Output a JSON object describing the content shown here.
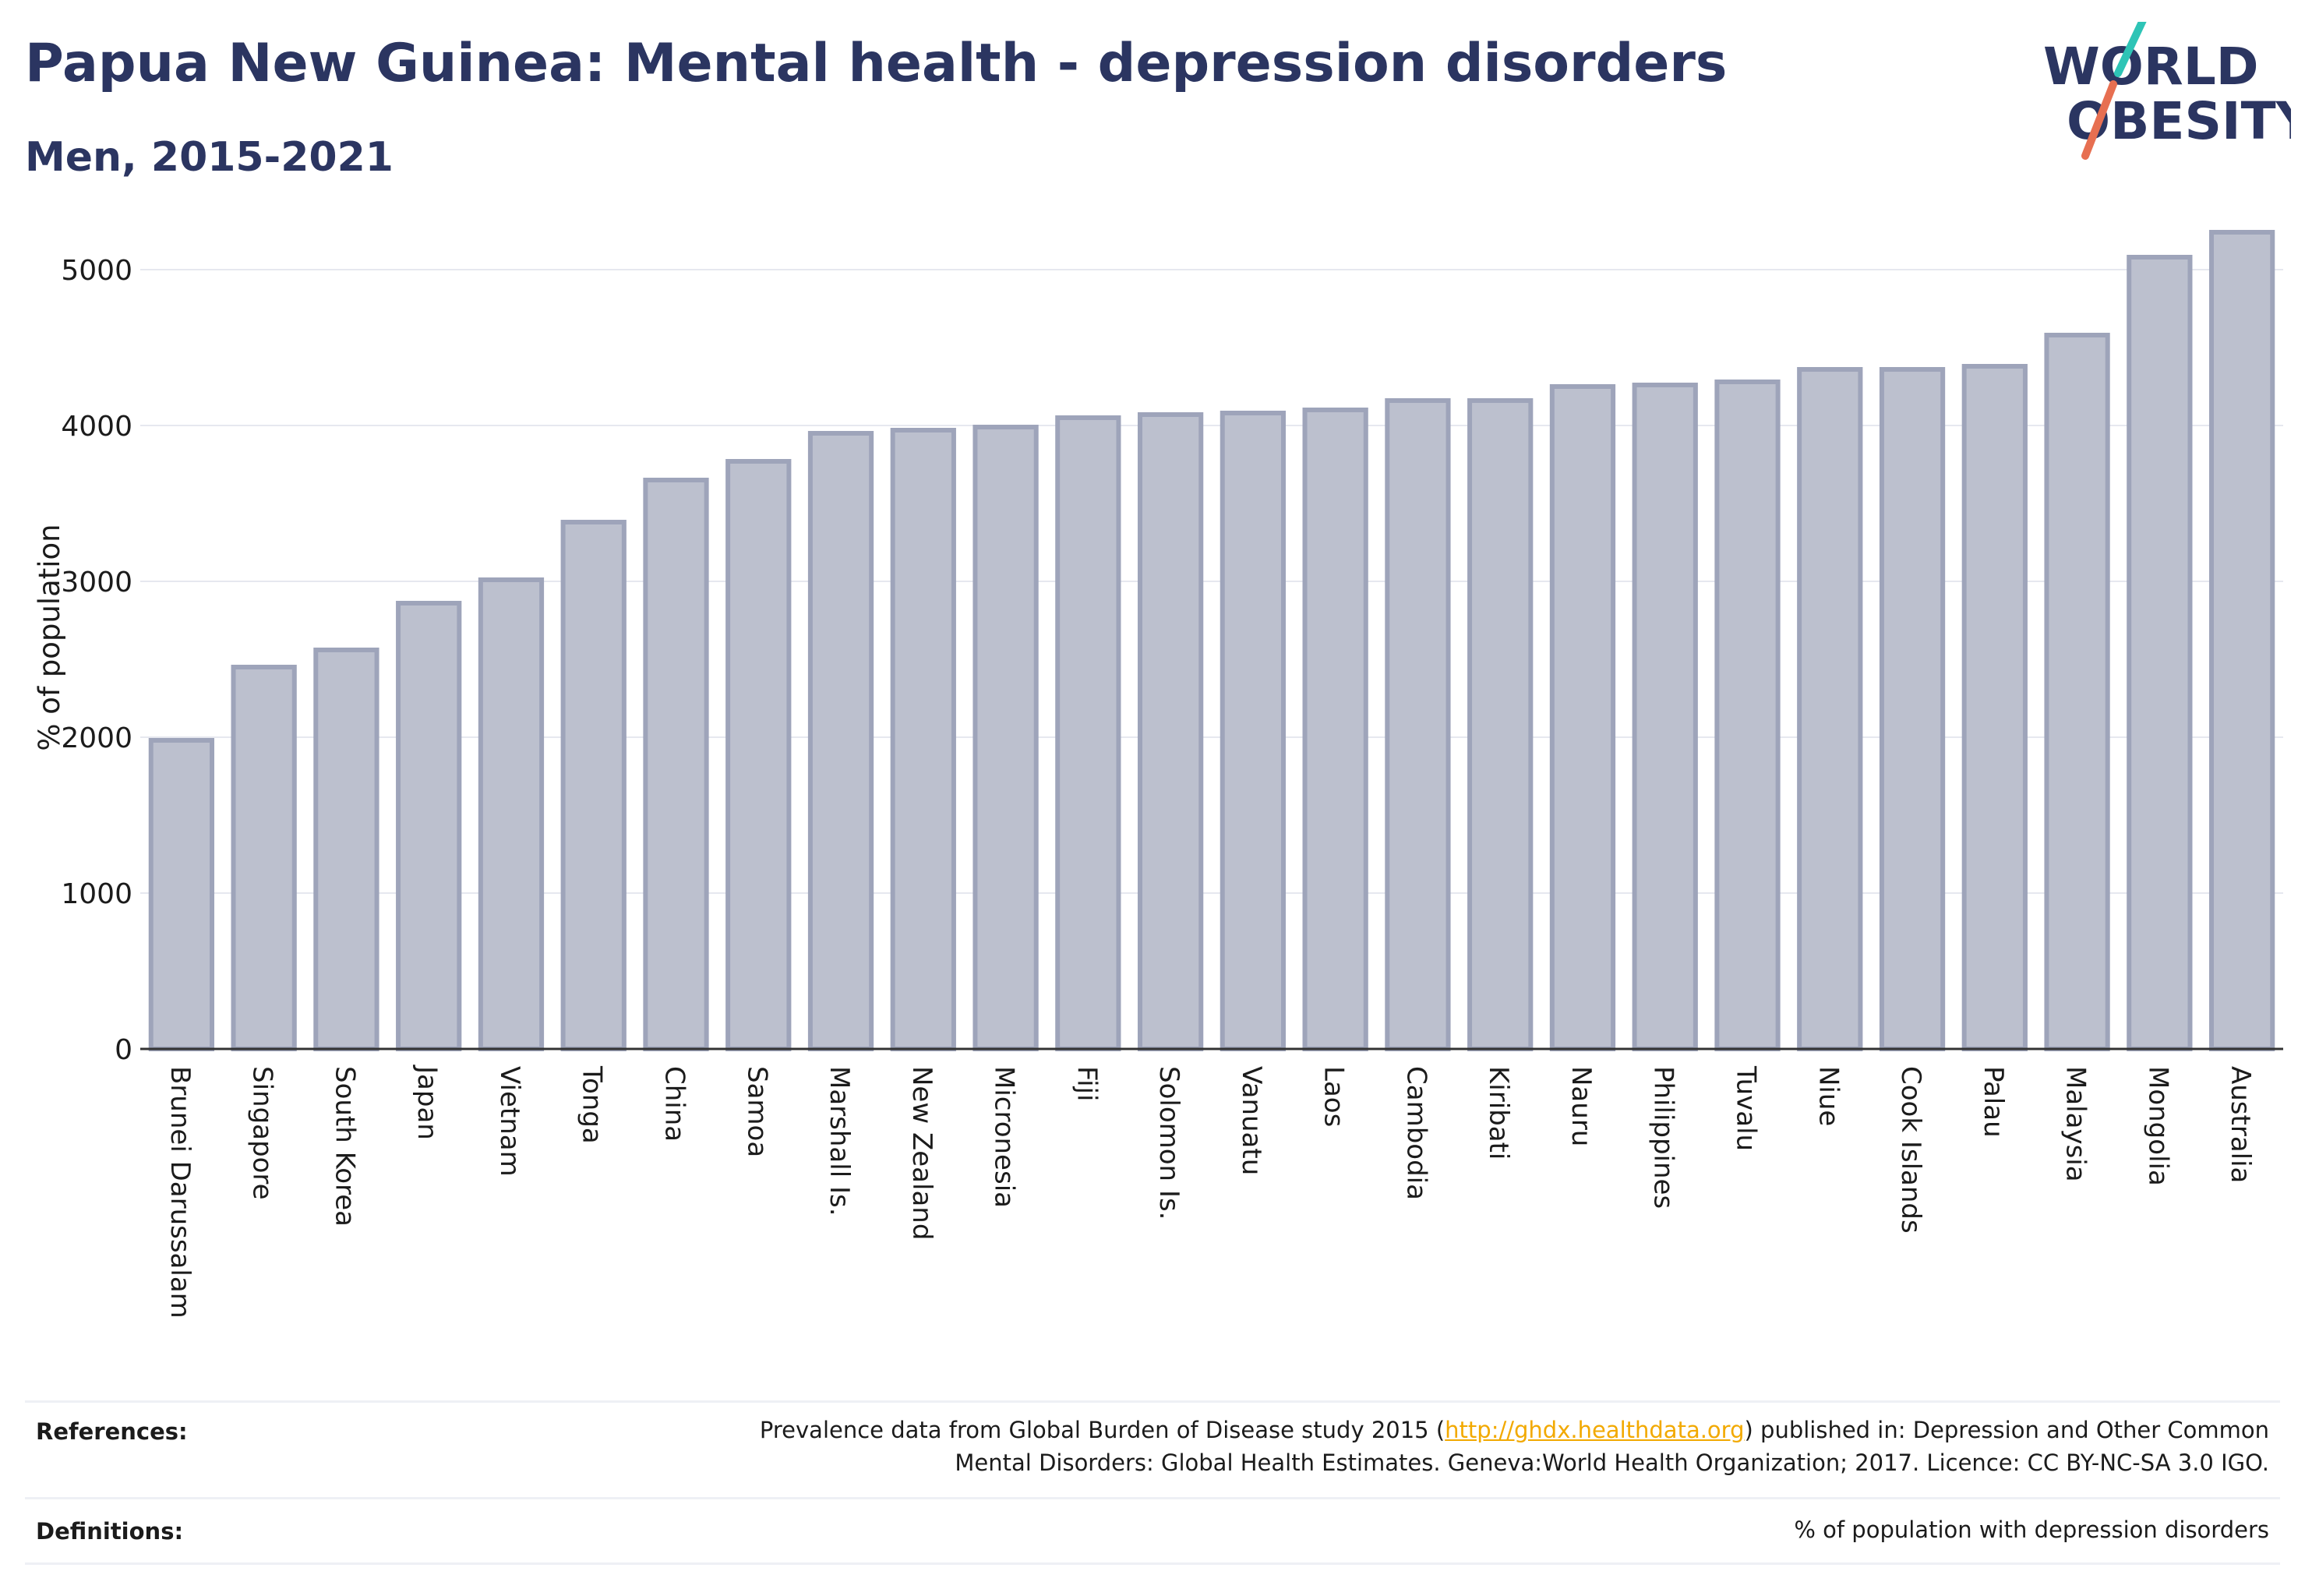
{
  "title": "Papua New Guinea: Mental health - depression disorders",
  "subtitle": "Men, 2015-2021",
  "logo": {
    "line1": "WORLD",
    "line2": "OBESITY",
    "colors": {
      "text": "#2b3561",
      "teal": "#2ec4b6",
      "coral": "#e76f51"
    }
  },
  "colors": {
    "bar_fill": "#bcc0ce",
    "bar_stroke": "#9ea4ba",
    "title": "#2b3561",
    "gridline": "#e6e8ef"
  },
  "chart_data": {
    "type": "bar",
    "ylabel": "% of population",
    "xlabel": "",
    "ylim": [
      0,
      5300
    ],
    "yticks": [
      0,
      1000,
      2000,
      3000,
      4000,
      5000
    ],
    "grid": true,
    "categories": [
      "Brunei Darussalam",
      "Singapore",
      "South Korea",
      "Japan",
      "Vietnam",
      "Tonga",
      "China",
      "Samoa",
      "Marshall Is.",
      "New Zealand",
      "Micronesia",
      "Fiji",
      "Solomon Is.",
      "Vanuatu",
      "Laos",
      "Cambodia",
      "Kiribati",
      "Nauru",
      "Philippines",
      "Tuvalu",
      "Niue",
      "Cook Islands",
      "Palau",
      "Malaysia",
      "Mongolia",
      "Australia"
    ],
    "values": [
      1980,
      2450,
      2560,
      2860,
      3010,
      3380,
      3650,
      3770,
      3950,
      3970,
      3990,
      4050,
      4070,
      4080,
      4100,
      4160,
      4160,
      4250,
      4260,
      4280,
      4360,
      4360,
      4380,
      4580,
      5080,
      5240
    ]
  },
  "footer": {
    "references_label": "References:",
    "references_text_before": "Prevalence data from Global Burden of Disease study 2015 (",
    "references_link": "http://ghdx.healthdata.org",
    "references_text_after": ") published in: Depression and Other Common",
    "references_text_line2": "Mental Disorders: Global Health Estimates. Geneva:World Health Organization; 2017. Licence: CC BY-NC-SA 3.0 IGO.",
    "definitions_label": "Definitions:",
    "definitions_text": "% of population with depression disorders"
  }
}
